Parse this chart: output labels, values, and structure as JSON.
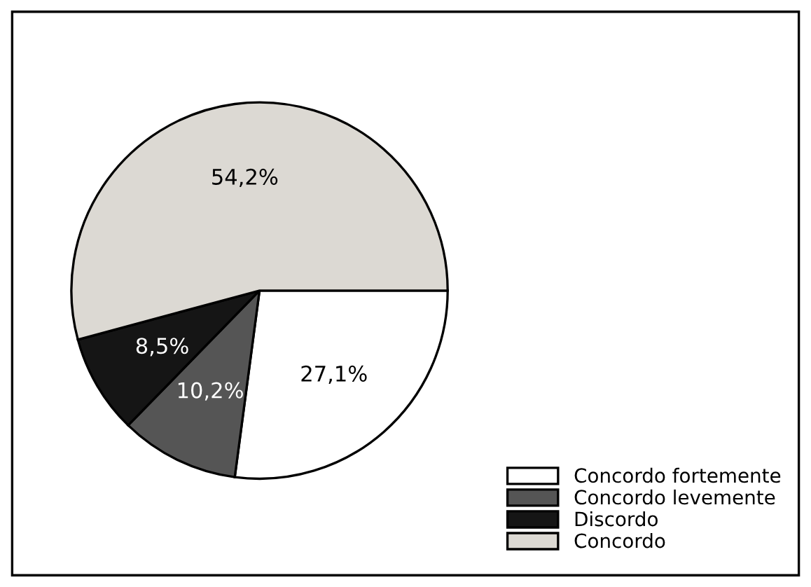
{
  "chart_data": {
    "type": "pie",
    "categories": [
      "Concordo fortemente",
      "Concordo levemente",
      "Discordo",
      "Concordo"
    ],
    "values": [
      27.1,
      10.2,
      8.5,
      54.2
    ],
    "colors": [
      "#ffffff",
      "#555555",
      "#151515",
      "#dcd9d3"
    ],
    "value_labels": [
      "27,1%",
      "10,2%",
      "8,5%",
      "54,2%"
    ],
    "legend": "bottom right"
  }
}
